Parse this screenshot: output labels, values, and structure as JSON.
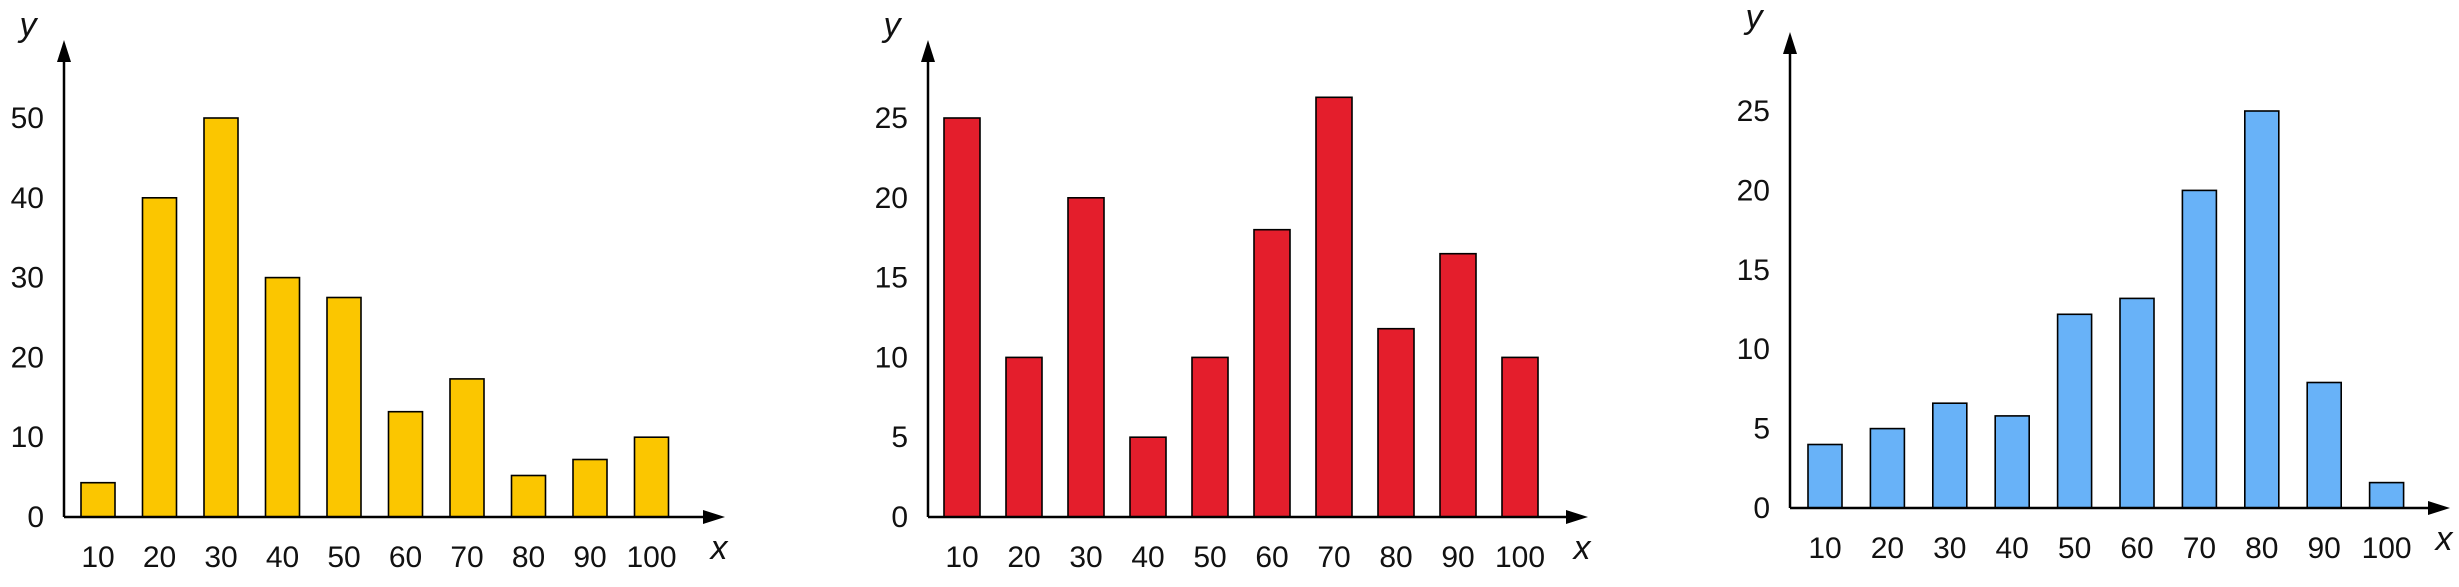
{
  "chart_data": [
    {
      "type": "bar",
      "xlabel": "x",
      "ylabel": "y",
      "categories": [
        "10",
        "20",
        "30",
        "40",
        "50",
        "60",
        "70",
        "80",
        "90",
        "100"
      ],
      "values": [
        4.3,
        40,
        50,
        30,
        27.5,
        13.2,
        17.3,
        5.2,
        7.2,
        10
      ],
      "yticks": [
        "0",
        "10",
        "20",
        "30",
        "40",
        "50"
      ],
      "ylim": [
        0,
        50
      ],
      "bar_color": "#FBC600",
      "grid": false
    },
    {
      "type": "bar",
      "xlabel": "x",
      "ylabel": "y",
      "categories": [
        "10",
        "20",
        "30",
        "40",
        "50",
        "60",
        "70",
        "80",
        "90",
        "100"
      ],
      "values": [
        25,
        10,
        20,
        5,
        10,
        18,
        26.3,
        11.8,
        16.5,
        10
      ],
      "yticks": [
        "0",
        "5",
        "10",
        "15",
        "20",
        "25"
      ],
      "ylim": [
        0,
        25
      ],
      "bar_color": "#E41E2C",
      "grid": false
    },
    {
      "type": "bar",
      "xlabel": "x",
      "ylabel": "y",
      "categories": [
        "10",
        "20",
        "30",
        "40",
        "50",
        "60",
        "70",
        "80",
        "90",
        "100"
      ],
      "values": [
        4,
        5,
        6.6,
        5.8,
        12.2,
        13.2,
        20,
        25,
        7.9,
        1.6
      ],
      "yticks": [
        "0",
        "5",
        "10",
        "15",
        "20",
        "25"
      ],
      "ylim": [
        0,
        25
      ],
      "bar_color": "#68B2F8",
      "grid": false
    }
  ]
}
